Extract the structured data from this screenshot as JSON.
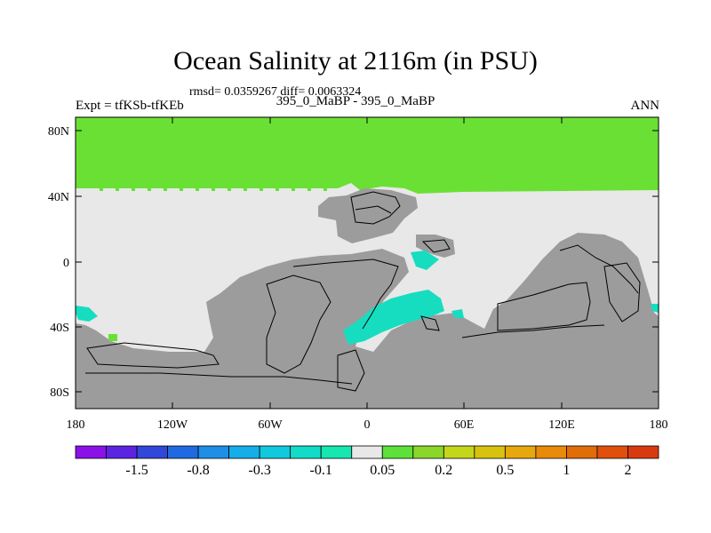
{
  "title": "Ocean Salinity at 2116m (in PSU)",
  "stats": "rmsd= 0.0359267  diff= 0.0063324",
  "experiment": "Expt = tfKSb-tfKEb",
  "subtitle": "395_0_MaBP - 395_0_MaBP",
  "season": "ANN",
  "lat_labels": [
    "80N",
    "40N",
    "0",
    "40S",
    "80S"
  ],
  "lon_labels": [
    "180",
    "120W",
    "60W",
    "0",
    "60E",
    "120E",
    "180"
  ],
  "colorbar": {
    "colors": [
      "#8a12e8",
      "#5b24e0",
      "#3047d9",
      "#1f6ae0",
      "#1e8ee6",
      "#16aee8",
      "#10c9df",
      "#12dcc8",
      "#16e6b0",
      "#e8e8e8",
      "#5ee03a",
      "#8ad62a",
      "#c4d61a",
      "#d8c210",
      "#e6a80c",
      "#e88a0a",
      "#e06c0a",
      "#e0500c",
      "#d83a10"
    ],
    "labels": [
      "-1.5",
      "-0.8",
      "-0.3",
      "-0.1",
      "0.05",
      "0.2",
      "0.5",
      "1",
      "2"
    ]
  },
  "colors": {
    "land": "#9c9c9c",
    "neutral": "#e8e8e8",
    "green": "#6ae034",
    "cyan": "#17ddc0",
    "coast": "#000000"
  }
}
